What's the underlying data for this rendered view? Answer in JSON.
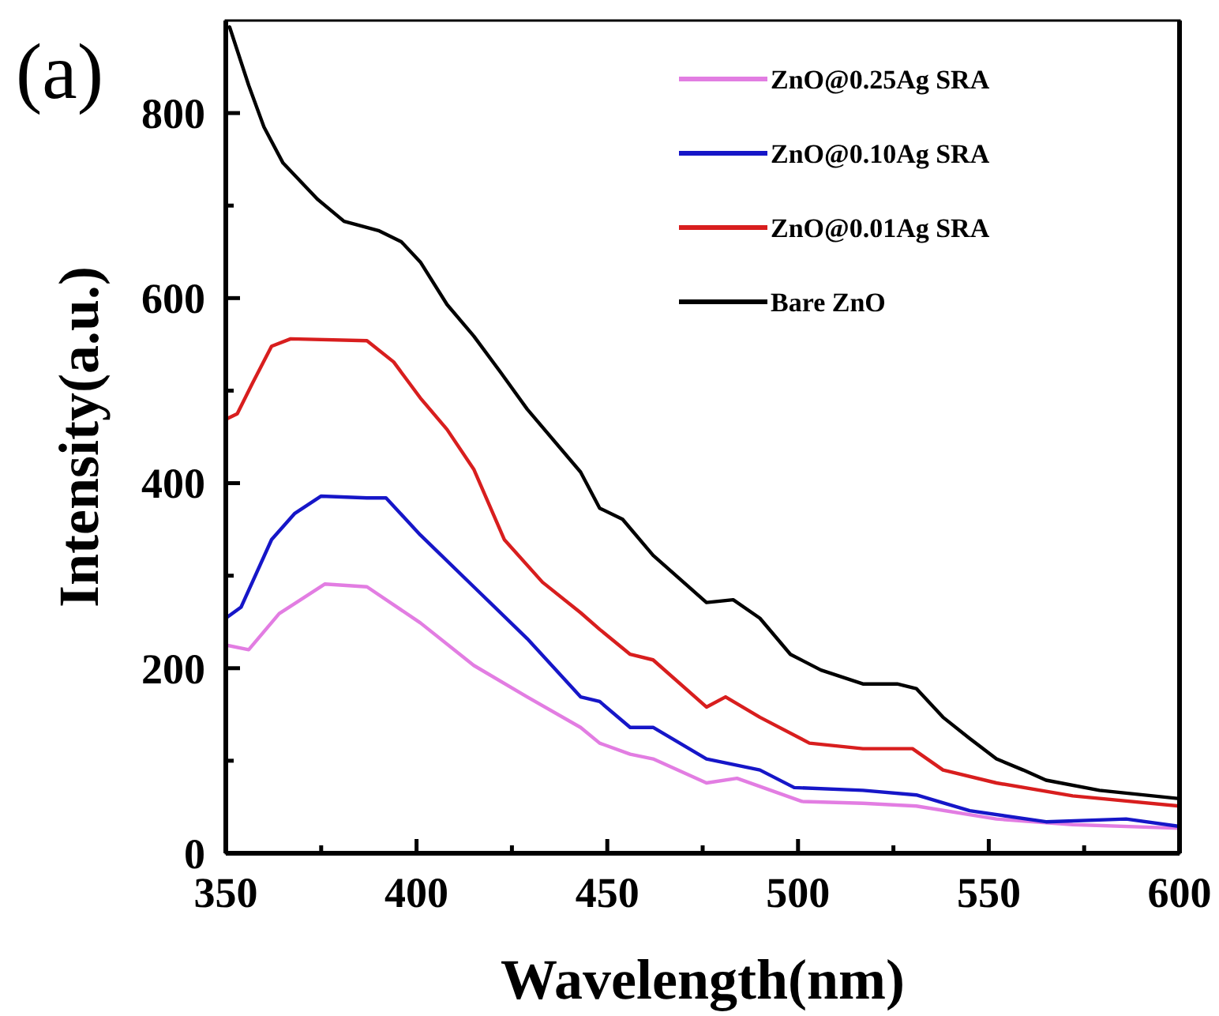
{
  "chart_data": {
    "type": "line",
    "xlabel": "Wavelength(nm)",
    "ylabel": "Intensity(a.u.)",
    "annotations": [
      "(a)"
    ],
    "xlim": [
      350,
      600
    ],
    "xticks": [
      350,
      {
        "value": 375,
        "label": null
      },
      400,
      {
        "value": 425,
        "label": null
      },
      450,
      {
        "value": 475,
        "label": null
      },
      500,
      {
        "value": 525,
        "label": null
      },
      550,
      {
        "value": 575,
        "label": null
      },
      600
    ],
    "ylim": [
      0,
      900
    ],
    "yticks": [
      0,
      {
        "value": 100,
        "label": null
      },
      200,
      {
        "value": 300,
        "label": null
      },
      400,
      {
        "value": 500,
        "label": null
      },
      600,
      {
        "value": 700,
        "label": null
      },
      800
    ],
    "grid": false,
    "legend": "top right",
    "marker": "none",
    "line_style": "solid",
    "series": [
      {
        "name": "ZnO@0.25Ag SRA",
        "color": "#e27de2",
        "x": [
          350,
          356,
          364,
          376,
          387,
          401,
          415,
          429,
          443,
          448,
          456,
          462,
          476,
          484,
          501,
          517,
          531,
          552,
          572,
          600
        ],
        "values": [
          225,
          220,
          259,
          291,
          288,
          249,
          203,
          169,
          136,
          119,
          107,
          102,
          76,
          81,
          56,
          54,
          51,
          37,
          31,
          27
        ]
      },
      {
        "name": "ZnO@0.10Ag SRA",
        "color": "#1616c8",
        "x": [
          350,
          354,
          362,
          368,
          375,
          387,
          392,
          401,
          415,
          429,
          443,
          448,
          456,
          462,
          476,
          490,
          499,
          517,
          531,
          545,
          565,
          586,
          600
        ],
        "values": [
          254,
          266,
          339,
          367,
          386,
          384,
          384,
          344,
          288,
          232,
          169,
          164,
          136,
          136,
          102,
          90,
          71,
          68,
          63,
          46,
          34,
          37,
          29
        ]
      },
      {
        "name": "ZnO@0.01Ag SRA",
        "color": "#d81e1e",
        "x": [
          350,
          353,
          357,
          362,
          367,
          387,
          394,
          401,
          408,
          415,
          423,
          433,
          443,
          448,
          456,
          462,
          476,
          481,
          490,
          503,
          517,
          530,
          538,
          552,
          572,
          600
        ],
        "values": [
          469,
          475,
          508,
          548,
          556,
          554,
          531,
          492,
          458,
          415,
          339,
          293,
          260,
          242,
          215,
          209,
          158,
          169,
          147,
          119,
          113,
          113,
          90,
          76,
          62,
          51
        ]
      },
      {
        "name": "Bare ZnO",
        "color": "#000000",
        "x": [
          351,
          356,
          360,
          365,
          374,
          381,
          390,
          396,
          401,
          408,
          415,
          422,
          429,
          443,
          448,
          454,
          462,
          476,
          483,
          490,
          498,
          506,
          517,
          526,
          531,
          538,
          545,
          552,
          559,
          565,
          579,
          600
        ],
        "values": [
          893,
          830,
          785,
          746,
          707,
          683,
          673,
          661,
          639,
          593,
          559,
          520,
          480,
          412,
          373,
          361,
          322,
          271,
          274,
          254,
          215,
          198,
          183,
          183,
          178,
          147,
          124,
          102,
          90,
          79,
          68,
          59
        ]
      }
    ]
  }
}
